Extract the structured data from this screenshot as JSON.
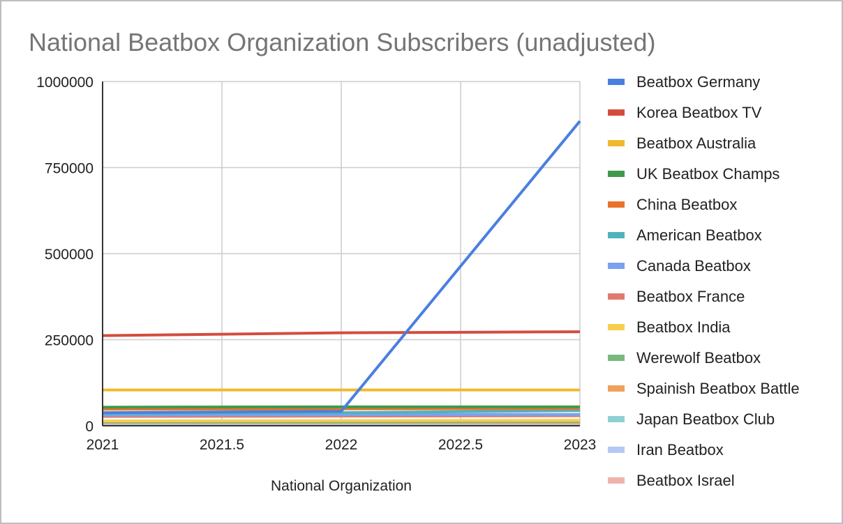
{
  "chart_data": {
    "type": "line",
    "title": "National Beatbox Organization Subscribers (unadjusted)",
    "xlabel": "National Organization",
    "ylabel": "",
    "xlim": [
      2021,
      2023
    ],
    "ylim": [
      0,
      1000000
    ],
    "x_ticks": [
      "2021",
      "2021.5",
      "2022",
      "2022.5",
      "2023"
    ],
    "y_ticks": [
      "0",
      "250000",
      "500000",
      "750000",
      "1000000"
    ],
    "grid": true,
    "legend_position": "right",
    "x": [
      2021,
      2022,
      2023
    ],
    "series": [
      {
        "name": "Beatbox Germany",
        "color": "#4a7fe0",
        "values": [
          38000,
          42000,
          885000
        ]
      },
      {
        "name": "Korea Beatbox TV",
        "color": "#d44c3e",
        "values": [
          262000,
          270000,
          273000
        ]
      },
      {
        "name": "Beatbox Australia",
        "color": "#f0b92e",
        "values": [
          104000,
          104000,
          104000
        ]
      },
      {
        "name": "UK Beatbox Champs",
        "color": "#3f9a4c",
        "values": [
          54000,
          55000,
          55000
        ]
      },
      {
        "name": "China Beatbox",
        "color": "#e8742c",
        "values": [
          48000,
          49000,
          50000
        ]
      },
      {
        "name": "American Beatbox",
        "color": "#4fb3bd",
        "values": [
          36000,
          38000,
          44000
        ]
      },
      {
        "name": "Canada Beatbox",
        "color": "#7aa2ed",
        "values": [
          31000,
          32000,
          33000
        ]
      },
      {
        "name": "Beatbox France",
        "color": "#e07a70",
        "values": [
          27000,
          28000,
          29000
        ]
      },
      {
        "name": "Beatbox India",
        "color": "#f5cf4f",
        "values": [
          14000,
          15000,
          16000
        ]
      },
      {
        "name": "Werewolf Beatbox",
        "color": "#7ab97e",
        "values": [
          12000,
          12000,
          13000
        ]
      },
      {
        "name": "Spainish Beatbox Battle",
        "color": "#f0a05c",
        "values": [
          10000,
          10000,
          10000
        ]
      },
      {
        "name": "Japan Beatbox Club",
        "color": "#8fd0d3",
        "values": [
          8000,
          8000,
          9000
        ]
      },
      {
        "name": "Iran Beatbox",
        "color": "#b4c9f3",
        "values": [
          7000,
          7000,
          8000
        ]
      },
      {
        "name": "Beatbox Israel",
        "color": "#efb3aa",
        "values": [
          4000,
          4000,
          4000
        ]
      }
    ]
  }
}
